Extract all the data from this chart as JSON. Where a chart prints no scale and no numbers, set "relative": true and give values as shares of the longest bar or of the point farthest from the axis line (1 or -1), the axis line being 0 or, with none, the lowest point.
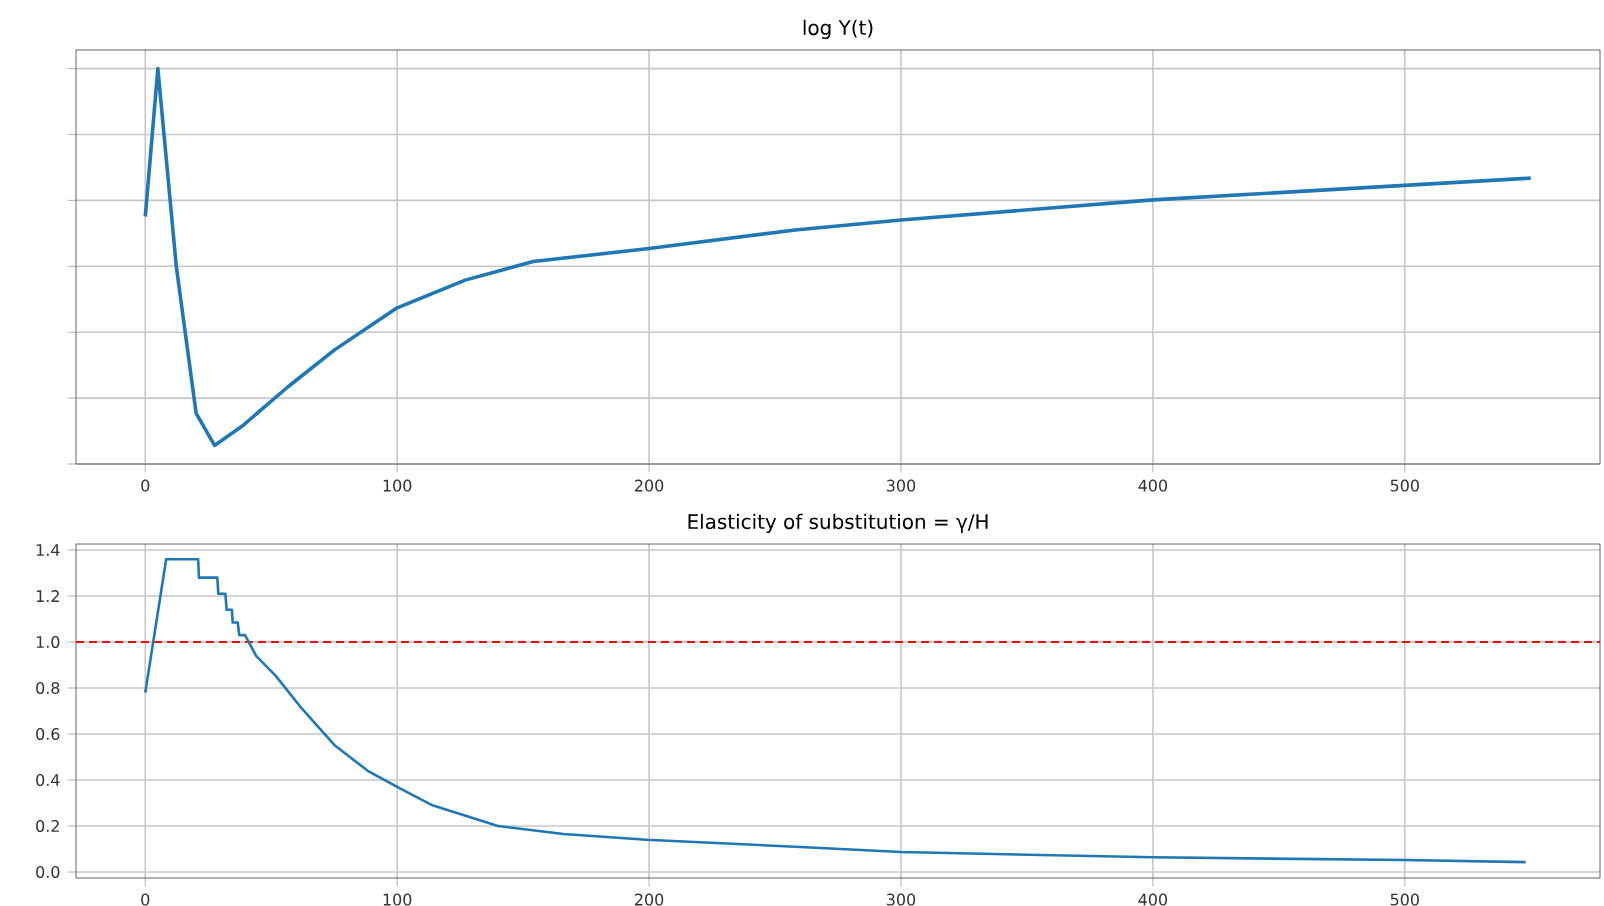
{
  "chart_data": [
    {
      "type": "line",
      "title": "log Y(t)",
      "relative": true,
      "grid": true,
      "tick_labels": "x",
      "xlim": [
        -27.5,
        577.5
      ],
      "xticks": [
        0,
        100,
        200,
        300,
        400,
        500
      ],
      "series": [
        {
          "color": "#1f77b4",
          "x": [
            0,
            5,
            12.3,
            20.2,
            27.5,
            38.5,
            56.8,
            75,
            100,
            127,
            154,
            200,
            258,
            300,
            400,
            550
          ],
          "values": [
            0.626,
            1,
            0.501,
            0.128,
            0.047,
            0.096,
            0.196,
            0.288,
            0.395,
            0.465,
            0.512,
            0.545,
            0.592,
            0.617,
            0.668,
            0.723
          ]
        }
      ]
    },
    {
      "type": "line",
      "title": "Elasticity of substitution = γ/H",
      "grid": true,
      "xlim": [
        -27.5,
        577.5
      ],
      "xticks": [
        0,
        100,
        200,
        300,
        400,
        500
      ],
      "ylim": [
        -0.026,
        1.426
      ],
      "yticks": [
        {
          "value": 0,
          "label": "0.0"
        },
        0.2,
        0.4,
        0.6,
        0.8,
        {
          "value": 1,
          "label": "1.0"
        },
        1.2,
        1.4
      ],
      "ref_lines": [
        {
          "axis": "y",
          "value": 1,
          "color": "#ff0000",
          "line_style": "dashed"
        }
      ],
      "series": [
        {
          "color": "#1f77b4",
          "x": [
            0,
            8.3,
            21,
            21.3,
            28.6,
            29,
            31.8,
            32.3,
            34.4,
            34.7,
            36.7,
            37.3,
            39.6,
            44,
            51.8,
            62.2,
            75.3,
            88.3,
            100,
            114,
            140,
            166,
            199,
            258,
            300,
            400,
            500,
            548
          ],
          "values": [
            0.78,
            1.36,
            1.36,
            1.28,
            1.28,
            1.21,
            1.21,
            1.14,
            1.14,
            1.085,
            1.085,
            1.03,
            1.03,
            0.94,
            0.853,
            0.71,
            0.55,
            0.44,
            0.37,
            0.29,
            0.2,
            0.165,
            0.14,
            0.11,
            0.087,
            0.064,
            0.052,
            0.043
          ]
        }
      ]
    }
  ]
}
